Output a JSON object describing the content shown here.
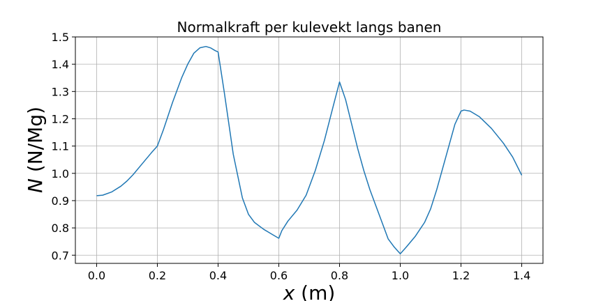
{
  "chart_data": {
    "type": "line",
    "title": "Normalkraft per kulevekt langs banen",
    "xlabel_var": "x",
    "xlabel_unit": " (m)",
    "ylabel_var": "N",
    "ylabel_unit": " (N/Mg)",
    "xlim": [
      -0.07,
      1.47
    ],
    "ylim": [
      0.67,
      1.5
    ],
    "xticks": [
      0.0,
      0.2,
      0.4,
      0.6,
      0.8,
      1.0,
      1.2,
      1.4
    ],
    "xtick_labels": [
      "0.0",
      "0.2",
      "0.4",
      "0.6",
      "0.8",
      "1.0",
      "1.2",
      "1.4"
    ],
    "yticks": [
      0.7,
      0.8,
      0.9,
      1.0,
      1.1,
      1.2,
      1.3,
      1.4,
      1.5
    ],
    "ytick_labels": [
      "0.7",
      "0.8",
      "0.9",
      "1.0",
      "1.1",
      "1.2",
      "1.3",
      "1.4",
      "1.5"
    ],
    "grid": true,
    "line_color": "#1f77b4",
    "series": [
      {
        "x": [
          0.0,
          0.02,
          0.05,
          0.08,
          0.1,
          0.12,
          0.15,
          0.18,
          0.2,
          0.22,
          0.25,
          0.28,
          0.3,
          0.32,
          0.34,
          0.36,
          0.375,
          0.39,
          0.4,
          0.42,
          0.45,
          0.48,
          0.5,
          0.52,
          0.55,
          0.58,
          0.6,
          0.61,
          0.63,
          0.66,
          0.69,
          0.72,
          0.75,
          0.78,
          0.8,
          0.82,
          0.84,
          0.86,
          0.88,
          0.9,
          0.92,
          0.94,
          0.96,
          0.98,
          1.0,
          1.02,
          1.05,
          1.08,
          1.1,
          1.12,
          1.15,
          1.18,
          1.2,
          1.21,
          1.23,
          1.26,
          1.3,
          1.34,
          1.37,
          1.4
        ],
        "y": [
          0.918,
          0.92,
          0.932,
          0.953,
          0.972,
          0.995,
          1.035,
          1.075,
          1.1,
          1.16,
          1.26,
          1.35,
          1.4,
          1.44,
          1.46,
          1.465,
          1.46,
          1.45,
          1.445,
          1.3,
          1.07,
          0.91,
          0.85,
          0.82,
          0.795,
          0.775,
          0.762,
          0.79,
          0.825,
          0.865,
          0.92,
          1.01,
          1.12,
          1.25,
          1.335,
          1.27,
          1.18,
          1.09,
          1.01,
          0.94,
          0.88,
          0.82,
          0.76,
          0.73,
          0.705,
          0.73,
          0.77,
          0.82,
          0.87,
          0.94,
          1.06,
          1.18,
          1.228,
          1.232,
          1.228,
          1.208,
          1.165,
          1.11,
          1.06,
          0.993
        ]
      }
    ]
  }
}
